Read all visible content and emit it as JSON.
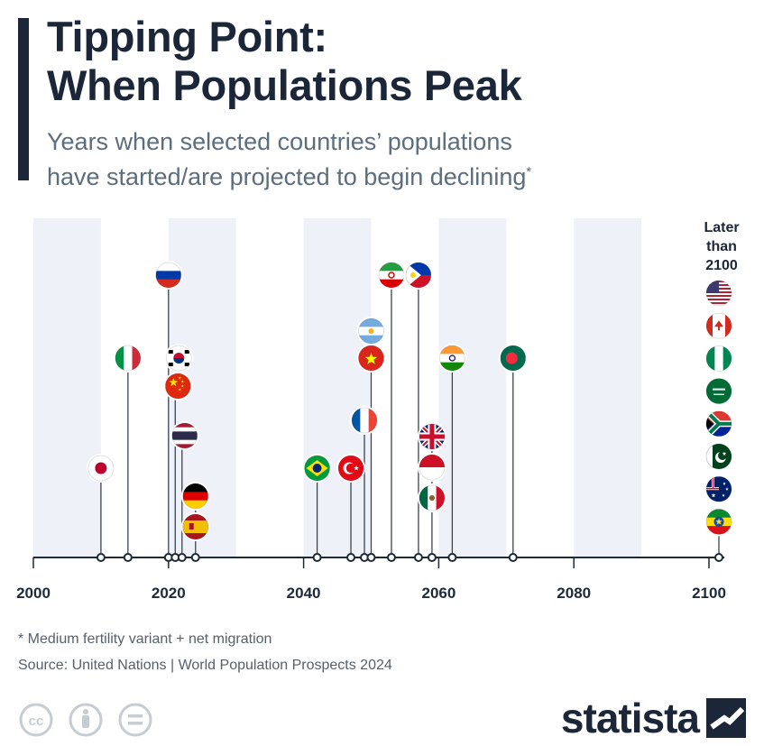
{
  "header": {
    "title_line1": "Tipping Point:",
    "title_line2": "When Populations Peak",
    "subtitle_line1": "Years when selected countries’ populations",
    "subtitle_line2": "have started/are projected to begin declining",
    "subtitle_marker": "*"
  },
  "later_label": [
    "Later",
    "than",
    "2100"
  ],
  "chart_data": {
    "type": "scatter",
    "title": "Tipping Point: When Populations Peak",
    "subtitle": "Years when selected countries’ populations have started/are projected to begin declining*",
    "xlabel": "",
    "ylabel": "",
    "xlim": [
      2000,
      2102
    ],
    "xticks": [
      2000,
      2020,
      2040,
      2060,
      2080,
      2100
    ],
    "grid": "alternating vertical bands",
    "legend": "none",
    "later_bucket_label": "Later than 2100",
    "countries": [
      {
        "name": "Japan",
        "year": 2010,
        "flag": "japan-flag"
      },
      {
        "name": "Italy",
        "year": 2014,
        "flag": "italy-flag"
      },
      {
        "name": "Russia",
        "year": 2020,
        "flag": "russia-flag"
      },
      {
        "name": "South Korea",
        "year": 2021,
        "flag": "south-korea-flag"
      },
      {
        "name": "China",
        "year": 2021,
        "flag": "china-flag"
      },
      {
        "name": "Thailand",
        "year": 2022,
        "flag": "thailand-flag"
      },
      {
        "name": "Germany",
        "year": 2024,
        "flag": "germany-flag"
      },
      {
        "name": "Spain",
        "year": 2024,
        "flag": "spain-flag"
      },
      {
        "name": "Brazil",
        "year": 2042,
        "flag": "brazil-flag"
      },
      {
        "name": "Turkey",
        "year": 2047,
        "flag": "turkey-flag"
      },
      {
        "name": "France",
        "year": 2049,
        "flag": "france-flag"
      },
      {
        "name": "Argentina",
        "year": 2050,
        "flag": "argentina-flag"
      },
      {
        "name": "Vietnam",
        "year": 2050,
        "flag": "vietnam-flag"
      },
      {
        "name": "Iran",
        "year": 2053,
        "flag": "iran-flag"
      },
      {
        "name": "Philippines",
        "year": 2057,
        "flag": "philippines-flag"
      },
      {
        "name": "United Kingdom",
        "year": 2059,
        "flag": "uk-flag"
      },
      {
        "name": "Indonesia",
        "year": 2059,
        "flag": "indonesia-flag"
      },
      {
        "name": "Mexico",
        "year": 2059,
        "flag": "mexico-flag"
      },
      {
        "name": "India",
        "year": 2062,
        "flag": "india-flag"
      },
      {
        "name": "Bangladesh",
        "year": 2071,
        "flag": "bangladesh-flag"
      }
    ],
    "later_than_2100": [
      {
        "name": "United States",
        "flag": "usa-flag"
      },
      {
        "name": "Canada",
        "flag": "canada-flag"
      },
      {
        "name": "Nigeria",
        "flag": "nigeria-flag"
      },
      {
        "name": "Saudi Arabia",
        "flag": "saudi-arabia-flag"
      },
      {
        "name": "South Africa",
        "flag": "south-africa-flag"
      },
      {
        "name": "Pakistan",
        "flag": "pakistan-flag"
      },
      {
        "name": "Australia",
        "flag": "australia-flag"
      },
      {
        "name": "Ethiopia",
        "flag": "ethiopia-flag"
      }
    ]
  },
  "footer": {
    "footnote": "* Medium fertility variant + net migration",
    "source": "Source: United Nations | World Population Prospects 2024",
    "logo_text": "statista",
    "license_icons": [
      "cc-icon",
      "by-attribution-icon",
      "no-derivatives-icon"
    ]
  },
  "colors": {
    "title": "#1b2638",
    "subtitle": "#5c6d7e",
    "band": "#eef1f7",
    "axis": "#1e2a38",
    "stem": "#3a4552"
  }
}
